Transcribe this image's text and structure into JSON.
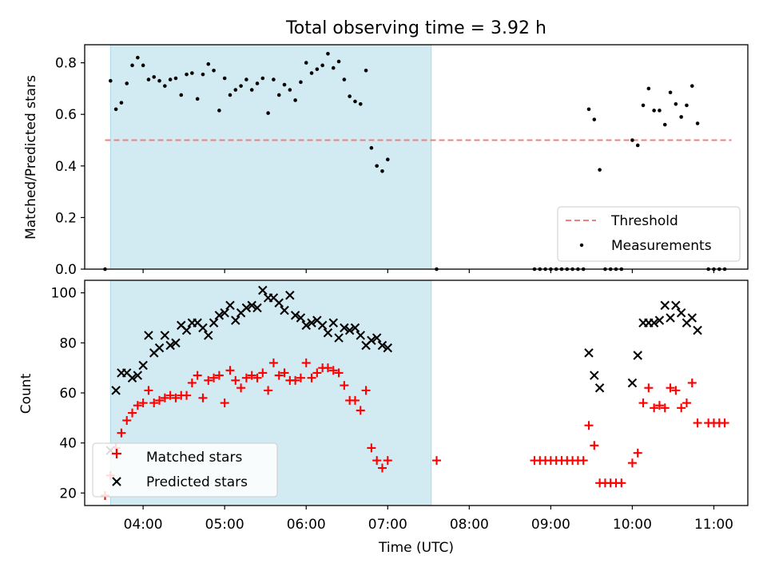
{
  "figure": {
    "title": "Total observing time = 3.92 h",
    "xlabel": "Time (UTC)"
  },
  "chart_data": [
    {
      "type": "scatter",
      "ylabel": "Matched/Predicted stars",
      "xlim": [
        "03:17",
        "11:25"
      ],
      "ylim": [
        0,
        0.87
      ],
      "x_ticks": [
        "04:00",
        "05:00",
        "06:00",
        "07:00",
        "08:00",
        "09:00",
        "10:00",
        "11:00"
      ],
      "y_ticks": [
        "0.0",
        "0.2",
        "0.4",
        "0.6",
        "0.8"
      ],
      "observing_window": {
        "start": "03:36",
        "end": "07:32",
        "color": "#add8e6"
      },
      "threshold": {
        "name": "Threshold",
        "value": 0.5,
        "x_range": [
          "03:32",
          "11:13"
        ],
        "color": "#f08080",
        "style": "dashed"
      },
      "legend": {
        "position": "lower right",
        "entries": [
          "Threshold",
          "Measurements"
        ]
      },
      "series": [
        {
          "name": "Measurements",
          "marker": "dot",
          "color": "#000000",
          "points": [
            [
              "03:32",
              0.0
            ],
            [
              "03:36",
              0.73
            ],
            [
              "03:40",
              0.62
            ],
            [
              "03:44",
              0.645
            ],
            [
              "03:48",
              0.72
            ],
            [
              "03:52",
              0.79
            ],
            [
              "03:56",
              0.82
            ],
            [
              "04:00",
              0.79
            ],
            [
              "04:04",
              0.735
            ],
            [
              "04:08",
              0.745
            ],
            [
              "04:12",
              0.73
            ],
            [
              "04:16",
              0.71
            ],
            [
              "04:20",
              0.735
            ],
            [
              "04:24",
              0.74
            ],
            [
              "04:28",
              0.675
            ],
            [
              "04:32",
              0.755
            ],
            [
              "04:36",
              0.76
            ],
            [
              "04:40",
              0.66
            ],
            [
              "04:44",
              0.755
            ],
            [
              "04:48",
              0.795
            ],
            [
              "04:52",
              0.77
            ],
            [
              "04:56",
              0.615
            ],
            [
              "05:00",
              0.74
            ],
            [
              "05:04",
              0.675
            ],
            [
              "05:08",
              0.695
            ],
            [
              "05:12",
              0.71
            ],
            [
              "05:16",
              0.735
            ],
            [
              "05:20",
              0.695
            ],
            [
              "05:24",
              0.72
            ],
            [
              "05:28",
              0.74
            ],
            [
              "05:32",
              0.605
            ],
            [
              "05:36",
              0.735
            ],
            [
              "05:40",
              0.675
            ],
            [
              "05:44",
              0.715
            ],
            [
              "05:48",
              0.695
            ],
            [
              "05:52",
              0.655
            ],
            [
              "05:56",
              0.725
            ],
            [
              "06:00",
              0.8
            ],
            [
              "06:04",
              0.76
            ],
            [
              "06:08",
              0.775
            ],
            [
              "06:12",
              0.79
            ],
            [
              "06:16",
              0.835
            ],
            [
              "06:20",
              0.78
            ],
            [
              "06:24",
              0.805
            ],
            [
              "06:28",
              0.735
            ],
            [
              "06:32",
              0.67
            ],
            [
              "06:36",
              0.65
            ],
            [
              "06:40",
              0.64
            ],
            [
              "06:44",
              0.77
            ],
            [
              "06:48",
              0.47
            ],
            [
              "06:52",
              0.4
            ],
            [
              "06:56",
              0.38
            ],
            [
              "07:00",
              0.425
            ],
            [
              "07:36",
              0.0
            ],
            [
              "08:48",
              0.0
            ],
            [
              "08:52",
              0.0
            ],
            [
              "08:56",
              0.0
            ],
            [
              "09:00",
              0.0
            ],
            [
              "09:04",
              0.0
            ],
            [
              "09:08",
              0.0
            ],
            [
              "09:12",
              0.0
            ],
            [
              "09:16",
              0.0
            ],
            [
              "09:20",
              0.0
            ],
            [
              "09:24",
              0.0
            ],
            [
              "09:28",
              0.62
            ],
            [
              "09:32",
              0.58
            ],
            [
              "09:36",
              0.385
            ],
            [
              "09:40",
              0.0
            ],
            [
              "09:44",
              0.0
            ],
            [
              "09:48",
              0.0
            ],
            [
              "09:52",
              0.0
            ],
            [
              "10:00",
              0.5
            ],
            [
              "10:04",
              0.48
            ],
            [
              "10:08",
              0.635
            ],
            [
              "10:12",
              0.7
            ],
            [
              "10:16",
              0.615
            ],
            [
              "10:20",
              0.615
            ],
            [
              "10:24",
              0.56
            ],
            [
              "10:28",
              0.685
            ],
            [
              "10:32",
              0.64
            ],
            [
              "10:36",
              0.59
            ],
            [
              "10:40",
              0.635
            ],
            [
              "10:44",
              0.71
            ],
            [
              "10:48",
              0.565
            ],
            [
              "10:56",
              0.0
            ],
            [
              "11:00",
              0.0
            ],
            [
              "11:04",
              0.0
            ],
            [
              "11:08",
              0.0
            ]
          ]
        }
      ]
    },
    {
      "type": "scatter",
      "ylabel": "Count",
      "xlim": [
        "03:17",
        "11:25"
      ],
      "ylim": [
        15,
        105
      ],
      "x_ticks": [
        "04:00",
        "05:00",
        "06:00",
        "07:00",
        "08:00",
        "09:00",
        "10:00",
        "11:00"
      ],
      "y_ticks": [
        "20",
        "40",
        "60",
        "80",
        "100"
      ],
      "observing_window": {
        "start": "03:36",
        "end": "07:32",
        "color": "#add8e6"
      },
      "legend": {
        "position": "lower left",
        "entries": [
          "Matched stars",
          "Predicted stars"
        ]
      },
      "series": [
        {
          "name": "Matched stars",
          "marker": "plus",
          "color": "#ff0000",
          "points": [
            [
              "03:32",
              19
            ],
            [
              "03:36",
              27
            ],
            [
              "03:40",
              38
            ],
            [
              "03:44",
              44
            ],
            [
              "03:48",
              49
            ],
            [
              "03:52",
              52
            ],
            [
              "03:56",
              55
            ],
            [
              "04:00",
              56
            ],
            [
              "04:04",
              61
            ],
            [
              "04:08",
              56
            ],
            [
              "04:12",
              57
            ],
            [
              "04:16",
              58
            ],
            [
              "04:20",
              59
            ],
            [
              "04:24",
              58
            ],
            [
              "04:28",
              59
            ],
            [
              "04:32",
              59
            ],
            [
              "04:36",
              64
            ],
            [
              "04:40",
              67
            ],
            [
              "04:44",
              58
            ],
            [
              "04:48",
              65
            ],
            [
              "04:52",
              66
            ],
            [
              "04:56",
              67
            ],
            [
              "05:00",
              56
            ],
            [
              "05:04",
              69
            ],
            [
              "05:08",
              65
            ],
            [
              "05:12",
              62
            ],
            [
              "05:16",
              66
            ],
            [
              "05:20",
              67
            ],
            [
              "05:24",
              66
            ],
            [
              "05:28",
              68
            ],
            [
              "05:32",
              61
            ],
            [
              "05:36",
              72
            ],
            [
              "05:40",
              67
            ],
            [
              "05:44",
              68
            ],
            [
              "05:48",
              65
            ],
            [
              "05:52",
              65
            ],
            [
              "05:56",
              66
            ],
            [
              "06:00",
              72
            ],
            [
              "06:04",
              66
            ],
            [
              "06:08",
              68
            ],
            [
              "06:12",
              70
            ],
            [
              "06:16",
              70
            ],
            [
              "06:20",
              69
            ],
            [
              "06:24",
              68
            ],
            [
              "06:28",
              63
            ],
            [
              "06:32",
              57
            ],
            [
              "06:36",
              57
            ],
            [
              "06:40",
              53
            ],
            [
              "06:44",
              61
            ],
            [
              "06:48",
              38
            ],
            [
              "06:52",
              33
            ],
            [
              "06:56",
              30
            ],
            [
              "07:00",
              33
            ],
            [
              "07:36",
              33
            ],
            [
              "08:48",
              33
            ],
            [
              "08:52",
              33
            ],
            [
              "08:56",
              33
            ],
            [
              "09:00",
              33
            ],
            [
              "09:04",
              33
            ],
            [
              "09:08",
              33
            ],
            [
              "09:12",
              33
            ],
            [
              "09:16",
              33
            ],
            [
              "09:20",
              33
            ],
            [
              "09:24",
              33
            ],
            [
              "09:28",
              47
            ],
            [
              "09:32",
              39
            ],
            [
              "09:36",
              24
            ],
            [
              "09:40",
              24
            ],
            [
              "09:44",
              24
            ],
            [
              "09:48",
              24
            ],
            [
              "09:52",
              24
            ],
            [
              "10:00",
              32
            ],
            [
              "10:04",
              36
            ],
            [
              "10:08",
              56
            ],
            [
              "10:12",
              62
            ],
            [
              "10:16",
              54
            ],
            [
              "10:20",
              55
            ],
            [
              "10:24",
              54
            ],
            [
              "10:28",
              62
            ],
            [
              "10:32",
              61
            ],
            [
              "10:36",
              54
            ],
            [
              "10:40",
              56
            ],
            [
              "10:44",
              64
            ],
            [
              "10:48",
              48
            ],
            [
              "10:56",
              48
            ],
            [
              "11:00",
              48
            ],
            [
              "11:04",
              48
            ],
            [
              "11:08",
              48
            ]
          ]
        },
        {
          "name": "Predicted stars",
          "marker": "x",
          "color": "#000000",
          "points": [
            [
              "03:36",
              37
            ],
            [
              "03:40",
              61
            ],
            [
              "03:44",
              68
            ],
            [
              "03:48",
              68
            ],
            [
              "03:52",
              66
            ],
            [
              "03:56",
              67
            ],
            [
              "04:00",
              71
            ],
            [
              "04:04",
              83
            ],
            [
              "04:08",
              76
            ],
            [
              "04:12",
              78
            ],
            [
              "04:16",
              83
            ],
            [
              "04:20",
              79
            ],
            [
              "04:24",
              80
            ],
            [
              "04:28",
              87
            ],
            [
              "04:32",
              85
            ],
            [
              "04:36",
              88
            ],
            [
              "04:40",
              88
            ],
            [
              "04:44",
              86
            ],
            [
              "04:48",
              83
            ],
            [
              "04:52",
              88
            ],
            [
              "04:56",
              91
            ],
            [
              "05:00",
              92
            ],
            [
              "05:04",
              95
            ],
            [
              "05:08",
              89
            ],
            [
              "05:12",
              92
            ],
            [
              "05:16",
              94
            ],
            [
              "05:20",
              95
            ],
            [
              "05:24",
              94
            ],
            [
              "05:28",
              101
            ],
            [
              "05:32",
              98
            ],
            [
              "05:36",
              98
            ],
            [
              "05:40",
              96
            ],
            [
              "05:44",
              93
            ],
            [
              "05:48",
              99
            ],
            [
              "05:52",
              91
            ],
            [
              "05:56",
              90
            ],
            [
              "06:00",
              87
            ],
            [
              "06:04",
              88
            ],
            [
              "06:08",
              89
            ],
            [
              "06:12",
              87
            ],
            [
              "06:16",
              84
            ],
            [
              "06:20",
              88
            ],
            [
              "06:24",
              82
            ],
            [
              "06:28",
              86
            ],
            [
              "06:32",
              85
            ],
            [
              "06:36",
              86
            ],
            [
              "06:40",
              83
            ],
            [
              "06:44",
              79
            ],
            [
              "06:48",
              81
            ],
            [
              "06:52",
              82
            ],
            [
              "06:56",
              79
            ],
            [
              "07:00",
              78
            ],
            [
              "09:28",
              76
            ],
            [
              "09:32",
              67
            ],
            [
              "09:36",
              62
            ],
            [
              "10:00",
              64
            ],
            [
              "10:04",
              75
            ],
            [
              "10:08",
              88
            ],
            [
              "10:12",
              88
            ],
            [
              "10:16",
              88
            ],
            [
              "10:20",
              89
            ],
            [
              "10:24",
              95
            ],
            [
              "10:28",
              90
            ],
            [
              "10:32",
              95
            ],
            [
              "10:36",
              92
            ],
            [
              "10:40",
              88
            ],
            [
              "10:44",
              90
            ],
            [
              "10:48",
              85
            ]
          ]
        }
      ]
    }
  ]
}
